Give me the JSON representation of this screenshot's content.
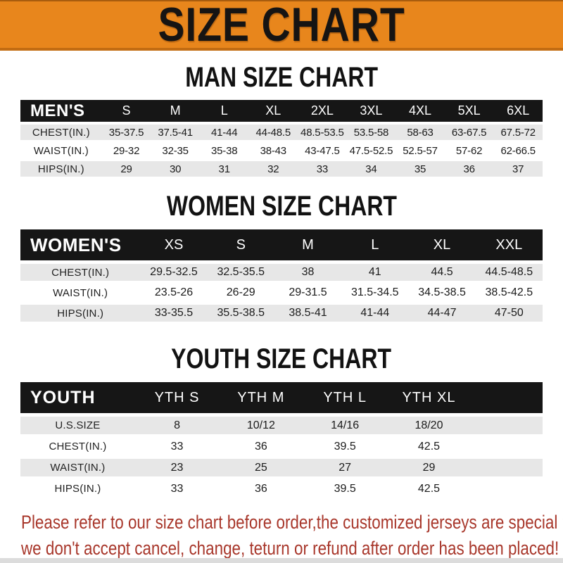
{
  "banner": {
    "title": "SIZE CHART"
  },
  "sections": [
    {
      "heading": "MAN SIZE CHART",
      "table": {
        "header": [
          "MEN'S",
          "S",
          "M",
          "L",
          "XL",
          "2XL",
          "3XL",
          "4XL",
          "5XL",
          "6XL"
        ],
        "rows": [
          {
            "label": "CHEST(IN.)",
            "values": [
              "35-37.5",
              "37.5-41",
              "41-44",
              "44-48.5",
              "48.5-53.5",
              "53.5-58",
              "58-63",
              "63-67.5",
              "67.5-72"
            ]
          },
          {
            "label": "WAIST(IN.)",
            "values": [
              "29-32",
              "32-35",
              "35-38",
              "38-43",
              "43-47.5",
              "47.5-52.5",
              "52.5-57",
              "57-62",
              "62-66.5"
            ]
          },
          {
            "label": "HIPS(IN.)",
            "values": [
              "29",
              "30",
              "31",
              "32",
              "33",
              "34",
              "35",
              "36",
              "37"
            ]
          }
        ]
      }
    },
    {
      "heading": "WOMEN SIZE CHART",
      "table": {
        "header": [
          "WOMEN'S",
          "XS",
          "S",
          "M",
          "L",
          "XL",
          "XXL"
        ],
        "rows": [
          {
            "label": "CHEST(IN.)",
            "values": [
              "29.5-32.5",
              "32.5-35.5",
              "38",
              "41",
              "44.5",
              "44.5-48.5"
            ]
          },
          {
            "label": "WAIST(IN.)",
            "values": [
              "23.5-26",
              "26-29",
              "29-31.5",
              "31.5-34.5",
              "34.5-38.5",
              "38.5-42.5"
            ]
          },
          {
            "label": "HIPS(IN.)",
            "values": [
              "33-35.5",
              "35.5-38.5",
              "38.5-41",
              "41-44",
              "44-47",
              "47-50"
            ]
          }
        ]
      }
    },
    {
      "heading": "YOUTH SIZE CHART",
      "table": {
        "header": [
          "YOUTH",
          "YTH S",
          "YTH M",
          "YTH L",
          "YTH XL"
        ],
        "rows": [
          {
            "label": "U.S.SIZE",
            "values": [
              "8",
              "10/12",
              "14/16",
              "18/20"
            ]
          },
          {
            "label": "CHEST(IN.)",
            "values": [
              "33",
              "36",
              "39.5",
              "42.5"
            ]
          },
          {
            "label": "WAIST(IN.)",
            "values": [
              "23",
              "25",
              "27",
              "29"
            ]
          },
          {
            "label": "HIPS(IN.)",
            "values": [
              "33",
              "36",
              "39.5",
              "42.5"
            ]
          }
        ]
      }
    }
  ],
  "footer": {
    "line1": "Please refer to our size chart before order,the customized jerseys are special products,",
    "line2": "we don't accept cancel, change, teturn or refund after order has been placed!"
  },
  "colors": {
    "banner_orange": "#E8861C",
    "banner_border": "#C26C12",
    "header_black": "#161616",
    "row_gray": "#E7E7E7",
    "notice_red": "#A8372B"
  }
}
